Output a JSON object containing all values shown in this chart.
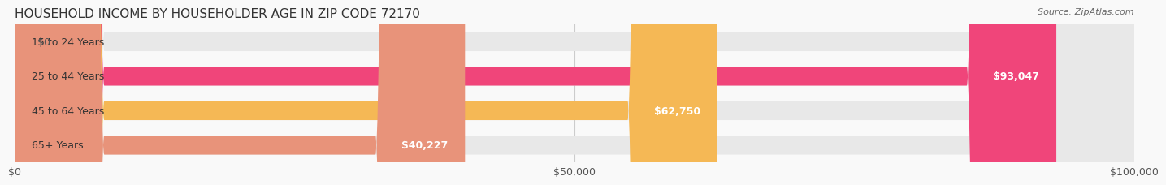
{
  "title": "HOUSEHOLD INCOME BY HOUSEHOLDER AGE IN ZIP CODE 72170",
  "source": "Source: ZipAtlas.com",
  "categories": [
    "15 to 24 Years",
    "25 to 44 Years",
    "45 to 64 Years",
    "65+ Years"
  ],
  "values": [
    0,
    93047,
    62750,
    40227
  ],
  "bar_colors": [
    "#a8a8d8",
    "#f0457a",
    "#f5b855",
    "#e8937a"
  ],
  "bar_bg_color": "#eeeeee",
  "x_max": 100000,
  "x_ticks": [
    0,
    50000,
    100000
  ],
  "x_tick_labels": [
    "$0",
    "$50,000",
    "$100,000"
  ],
  "label_fontsize": 9,
  "title_fontsize": 11,
  "bar_height": 0.55,
  "background_color": "#f9f9f9"
}
